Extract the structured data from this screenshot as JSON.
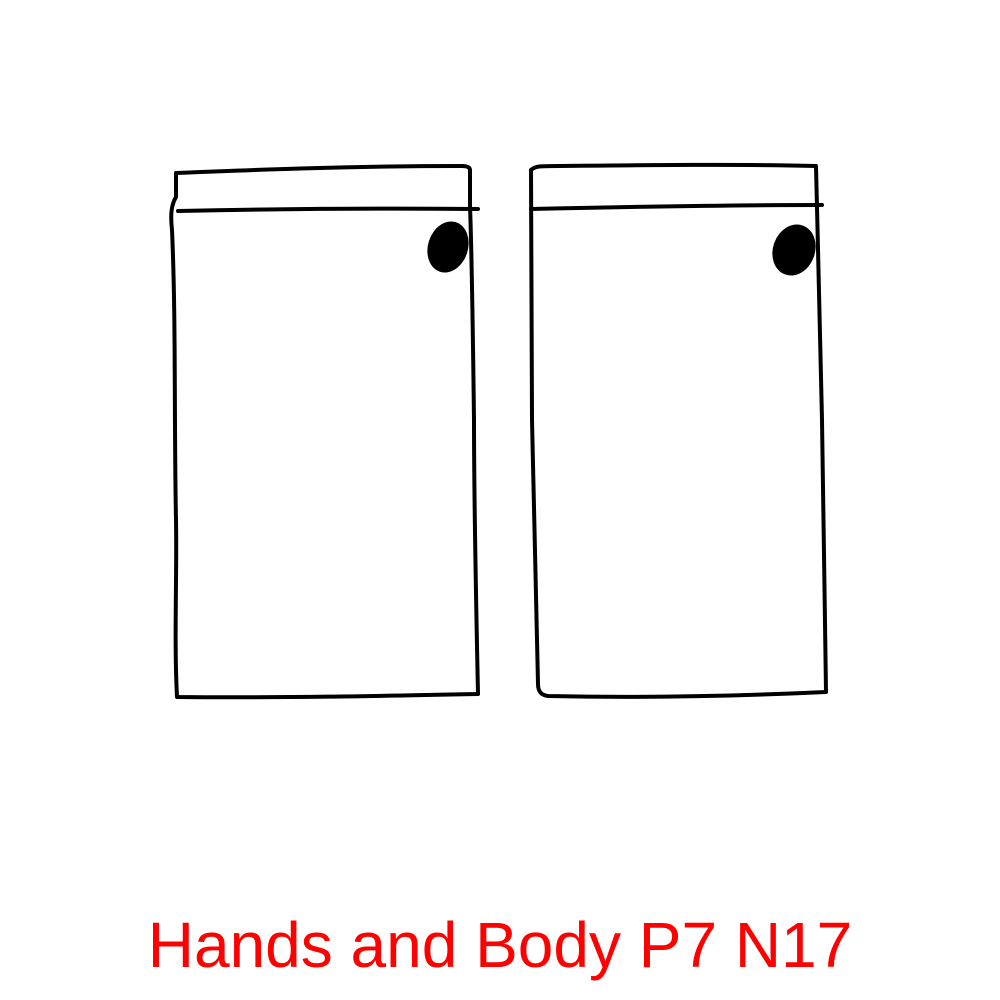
{
  "caption": {
    "text": "Hands and Body P7 N17",
    "color": "#ff0000"
  },
  "drawing": {
    "stroke_color": "#000000",
    "shapes": [
      {
        "name": "left-panel",
        "has_band": true,
        "has_dot": true
      },
      {
        "name": "right-panel",
        "has_band": true,
        "has_dot": true
      }
    ]
  }
}
